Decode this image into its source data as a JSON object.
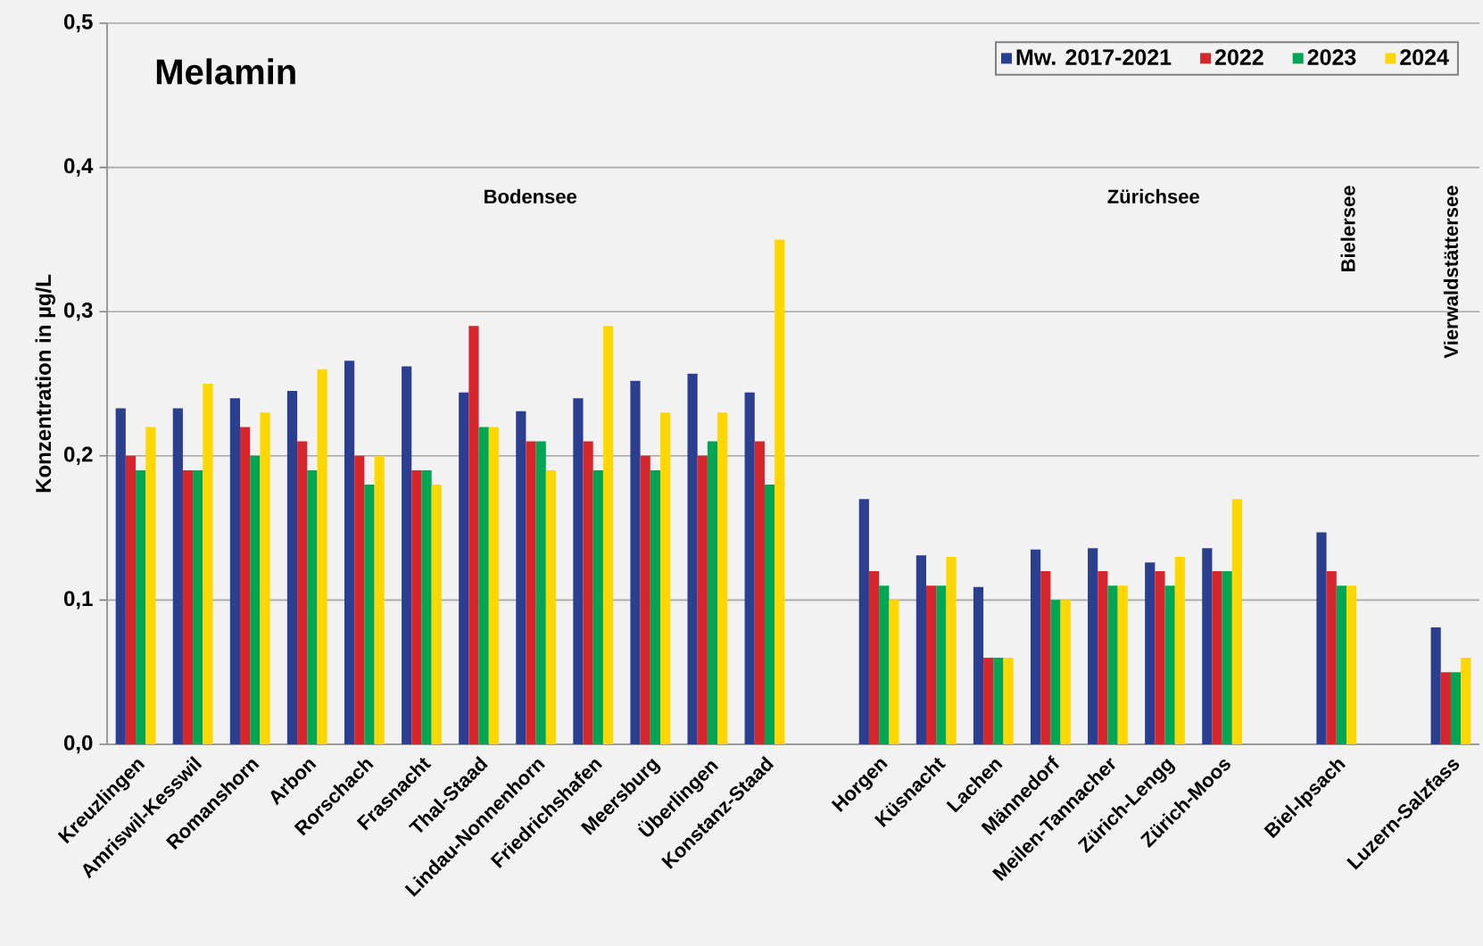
{
  "chart_data": {
    "type": "bar",
    "title": "Melamin",
    "ylabel": "Konzentration in µg/L",
    "categories": [
      "Kreuzlingen",
      "Amriswil-Kesswil",
      "Romanshorn",
      "Arbon",
      "Rorschach",
      "Frasnacht",
      "Thal-Staad",
      "Lindau-Nonnenhorn",
      "Friedrichshafen",
      "Meersburg",
      "Überlingen",
      "Konstanz-Staad",
      null,
      "Horgen",
      "Küsnacht",
      "Lachen",
      "Männedorf",
      "Meilen-Tannacher",
      "Zürich-Lengg",
      "Zürich-Moos",
      null,
      "Biel-Ipsach",
      null,
      "Luzern-Salzfass"
    ],
    "series": [
      {
        "name": "Mw. 2017-2021",
        "color": "#2a3f8f",
        "values": [
          0.233,
          0.233,
          0.24,
          0.245,
          0.266,
          0.262,
          0.244,
          0.231,
          0.24,
          0.252,
          0.257,
          0.244,
          null,
          0.17,
          0.131,
          0.109,
          0.135,
          0.136,
          0.126,
          0.136,
          null,
          0.147,
          null,
          0.081
        ]
      },
      {
        "name": "2022",
        "color": "#d7262e",
        "values": [
          0.2,
          0.19,
          0.22,
          0.21,
          0.2,
          0.19,
          0.29,
          0.21,
          0.21,
          0.2,
          0.2,
          0.21,
          null,
          0.12,
          0.11,
          0.06,
          0.12,
          0.12,
          0.12,
          0.12,
          null,
          0.12,
          null,
          0.05
        ]
      },
      {
        "name": "2023",
        "color": "#00a651",
        "values": [
          0.19,
          0.19,
          0.2,
          0.19,
          0.18,
          0.19,
          0.22,
          0.21,
          0.19,
          0.19,
          0.21,
          0.18,
          null,
          0.11,
          0.11,
          0.06,
          0.1,
          0.11,
          0.11,
          0.12,
          null,
          0.11,
          null,
          0.05
        ]
      },
      {
        "name": "2024",
        "color": "#ffd700",
        "values": [
          0.22,
          0.25,
          0.23,
          0.26,
          0.2,
          0.18,
          0.22,
          0.19,
          0.29,
          0.23,
          0.23,
          0.35,
          null,
          0.1,
          0.13,
          0.06,
          0.1,
          0.11,
          0.13,
          0.17,
          null,
          0.11,
          null,
          0.06
        ]
      }
    ],
    "ylim": [
      0,
      0.5
    ],
    "yticks": [
      {
        "value": 0,
        "label": "0,0"
      },
      {
        "value": 0.1,
        "label": "0,1"
      },
      {
        "value": 0.2,
        "label": "0,2"
      },
      {
        "value": 0.3,
        "label": "0,3"
      },
      {
        "value": 0.4,
        "label": "0,4"
      },
      {
        "value": 0.5,
        "label": "0,5"
      }
    ],
    "grid": "y",
    "legend": "top right",
    "annotations": [
      "Bodensee",
      "Zürichsee",
      "Bielersee",
      "Vierwaldstättersee"
    ]
  }
}
